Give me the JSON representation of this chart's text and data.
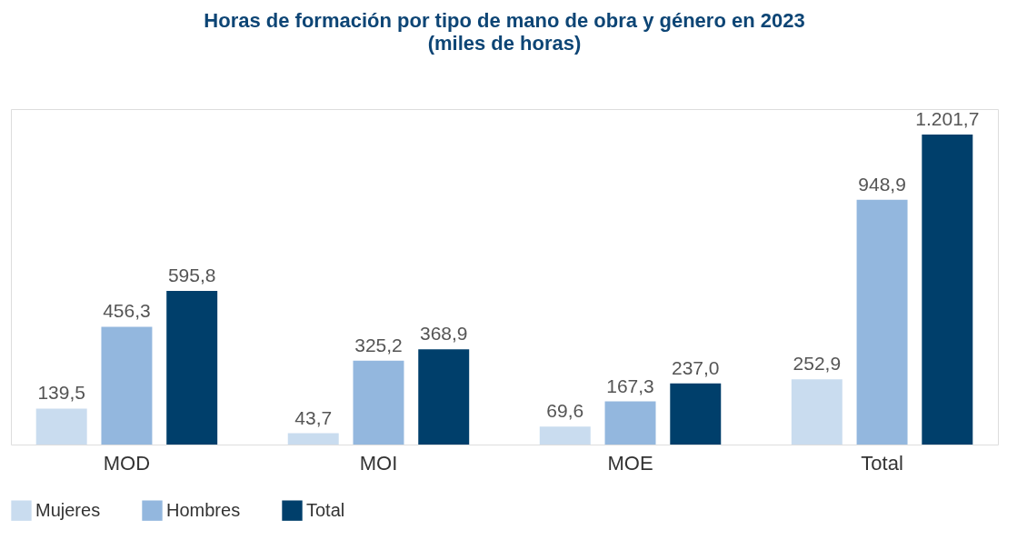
{
  "chart_data": {
    "type": "bar",
    "title": "Horas de formación por tipo de mano de obra y género en 2023",
    "subtitle": "(miles de horas)",
    "categories": [
      "MOD",
      "MOI",
      "MOE",
      "Total"
    ],
    "series": [
      {
        "name": "Mujeres",
        "color": "#c9dcef",
        "values": [
          139.5,
          43.7,
          69.6,
          252.9
        ],
        "value_labels": [
          "139,5",
          "43,7",
          "69,6",
          "252,9"
        ]
      },
      {
        "name": "Hombres",
        "color": "#93b7de",
        "values": [
          456.3,
          325.2,
          167.3,
          948.9
        ],
        "value_labels": [
          "456,3",
          "325,2",
          "167,3",
          "948,9"
        ]
      },
      {
        "name": "Total",
        "color": "#003f6b",
        "values": [
          595.8,
          368.9,
          237.0,
          1201.7
        ],
        "value_labels": [
          "595,8",
          "368,9",
          "237,0",
          "1.201,7"
        ]
      }
    ],
    "legend": "bottom",
    "grid": false,
    "tick_labels": "x"
  }
}
